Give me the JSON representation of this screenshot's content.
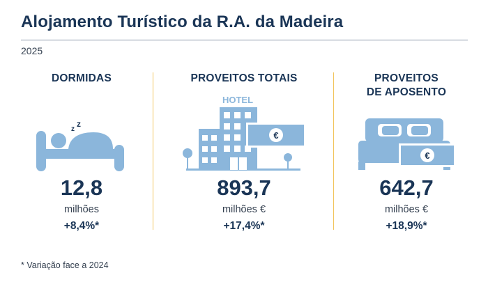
{
  "title": "Alojamento Turístico da R.A. da Madeira",
  "year": "2025",
  "colors": {
    "navy": "#1a3556",
    "icon_blue": "#8bb6db",
    "divider_gold": "#f2c45c"
  },
  "metrics": [
    {
      "heading": "DORMIDAS",
      "icon": "sleeping-person-icon",
      "value": "12,8",
      "unit": "milhões",
      "change": "+8,4%*"
    },
    {
      "heading": "PROVEITOS TOTAIS",
      "icon": "hotel-building-icon",
      "sign_text": "HOTEL",
      "value": "893,7",
      "unit": "milhões €",
      "change": "+17,4%*"
    },
    {
      "heading_line1": "PROVEITOS",
      "heading_line2": "DE APOSENTO",
      "icon": "bed-with-money-icon",
      "value": "642,7",
      "unit": "milhões €",
      "change": "+18,9%*"
    }
  ],
  "footnote": "* Variação face a 2024"
}
